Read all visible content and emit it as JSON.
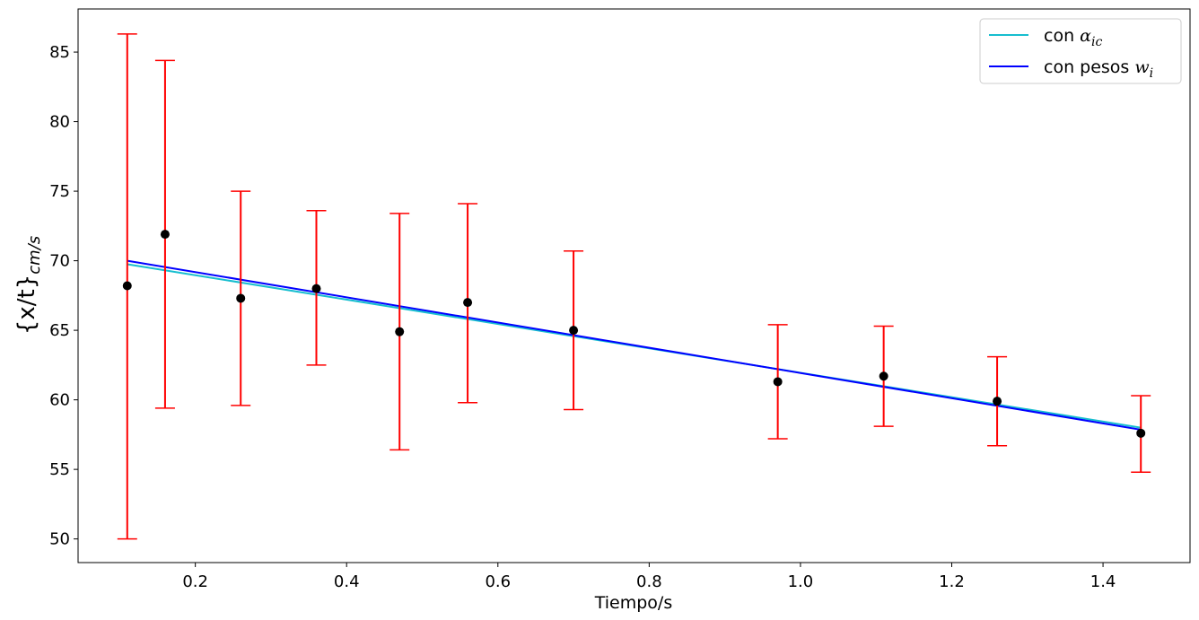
{
  "chart_data": {
    "type": "scatter",
    "xlabel": "Tiempo/s",
    "ylabel": {
      "main": "{x/t}",
      "subscript": "cm/s"
    },
    "xlim": [
      0.045,
      1.515
    ],
    "ylim": [
      48.3,
      88.1
    ],
    "xticks": [
      {
        "value": 0.2,
        "label": "0.2"
      },
      {
        "value": 0.4,
        "label": "0.4"
      },
      {
        "value": 0.6,
        "label": "0.6"
      },
      {
        "value": 0.8,
        "label": "0.8"
      },
      {
        "value": 1.0,
        "label": "1.0"
      },
      {
        "value": 1.2,
        "label": "1.2"
      },
      {
        "value": 1.4,
        "label": "1.4"
      }
    ],
    "yticks": [
      {
        "value": 50,
        "label": "50"
      },
      {
        "value": 55,
        "label": "55"
      },
      {
        "value": 60,
        "label": "60"
      },
      {
        "value": 65,
        "label": "65"
      },
      {
        "value": 70,
        "label": "70"
      },
      {
        "value": 75,
        "label": "75"
      },
      {
        "value": 80,
        "label": "80"
      },
      {
        "value": 85,
        "label": "85"
      }
    ],
    "points": [
      {
        "x": 0.11,
        "y": 68.2,
        "low": 50.0,
        "high": 86.3
      },
      {
        "x": 0.16,
        "y": 71.9,
        "low": 59.4,
        "high": 84.4
      },
      {
        "x": 0.26,
        "y": 67.3,
        "low": 59.6,
        "high": 75.0
      },
      {
        "x": 0.36,
        "y": 68.0,
        "low": 62.5,
        "high": 73.6
      },
      {
        "x": 0.47,
        "y": 64.9,
        "low": 56.4,
        "high": 73.4
      },
      {
        "x": 0.56,
        "y": 67.0,
        "low": 59.8,
        "high": 74.1
      },
      {
        "x": 0.7,
        "y": 65.0,
        "low": 59.3,
        "high": 70.7
      },
      {
        "x": 0.97,
        "y": 61.3,
        "low": 57.2,
        "high": 65.4
      },
      {
        "x": 1.11,
        "y": 61.7,
        "low": 58.1,
        "high": 65.3
      },
      {
        "x": 1.26,
        "y": 59.9,
        "low": 56.7,
        "high": 63.1
      },
      {
        "x": 1.45,
        "y": 57.6,
        "low": 54.8,
        "high": 60.3
      }
    ],
    "series": [
      {
        "name": "con α_ic",
        "x": [
          0.11,
          1.45
        ],
        "y": [
          69.75,
          58.0
        ]
      },
      {
        "name": "con pesos w_i",
        "x": [
          0.11,
          1.45
        ],
        "y": [
          70.0,
          57.85
        ]
      }
    ],
    "legend": {
      "position": "top-right",
      "entries": [
        {
          "text": "con ",
          "math": "α",
          "sub": "ic",
          "color": "#17becf"
        },
        {
          "text": "con pesos ",
          "math": "w",
          "sub": "i",
          "color": "#0000ff"
        }
      ]
    },
    "colors": {
      "points": "#000000",
      "errorbars": "#ff0000",
      "frame": "#000000"
    }
  }
}
